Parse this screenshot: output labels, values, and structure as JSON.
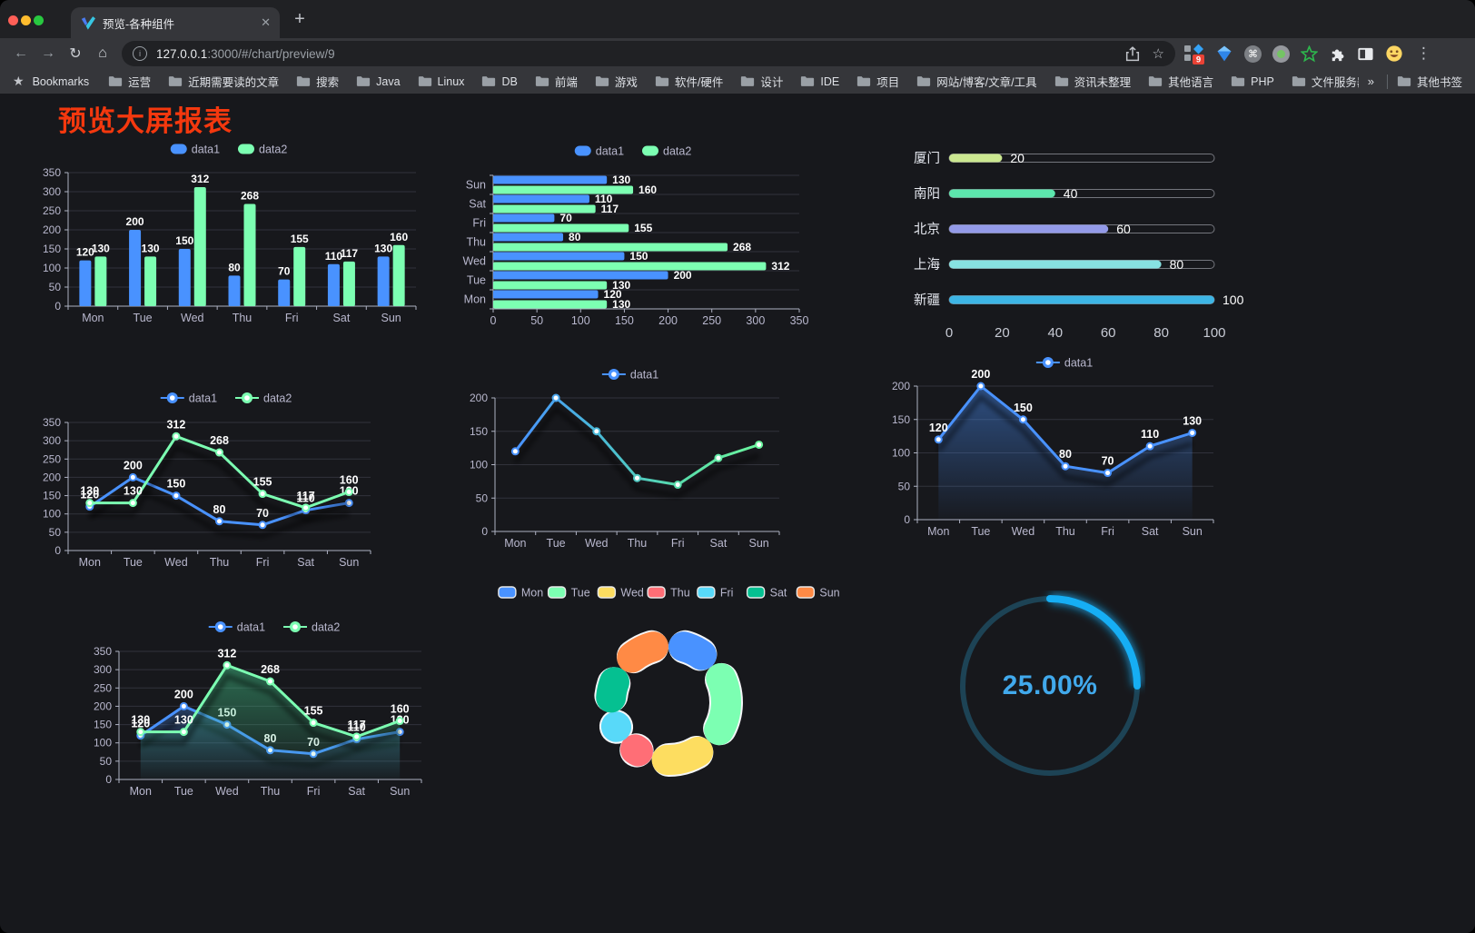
{
  "browser": {
    "tab_title": "预览-各种组件",
    "new_tab_glyph": "+",
    "close_glyph": "✕",
    "url_host": "127.0.0.1",
    "url_rest": ":3000/#/chart/preview/9",
    "extension_badge": "9",
    "icons": {
      "back": "←",
      "forward": "→",
      "reload": "↻",
      "home": "⌂",
      "bookmark_star": "☆",
      "bookmarks_bar_star": "★",
      "menu": "⋮",
      "command": "⌘"
    },
    "bookmarks_bar": {
      "label": "Bookmarks",
      "folders": [
        "运营",
        "近期需要读的文章",
        "搜索",
        "Java",
        "Linux",
        "DB",
        "前端",
        "游戏",
        "软件/硬件",
        "设计",
        "IDE",
        "项目",
        "网站/博客/文章/工具",
        "资讯未整理",
        "其他语言",
        "PHP",
        "文件服务器"
      ],
      "overflow": "»",
      "other_bookmarks": "其他书签"
    }
  },
  "page": {
    "title": "预览大屏报表",
    "title_color": "#f4380e",
    "background": "#17181c"
  },
  "colors": {
    "axis_text": "#b9b8ce",
    "axis_line": "#aeb2c2",
    "grid_line": "#31323b",
    "value_label": "#ffffff",
    "series_blue": "#4992ff",
    "series_green": "#7cffb2"
  },
  "chart_data": [
    {
      "id": "bar-vertical",
      "type": "bar",
      "categories": [
        "Mon",
        "Tue",
        "Wed",
        "Thu",
        "Fri",
        "Sat",
        "Sun"
      ],
      "series": [
        {
          "name": "data1",
          "color": "#4992ff",
          "values": [
            120,
            200,
            150,
            80,
            70,
            110,
            130
          ]
        },
        {
          "name": "data2",
          "color": "#7cffb2",
          "values": [
            130,
            130,
            312,
            268,
            155,
            117,
            160
          ]
        }
      ],
      "ylim": [
        0,
        350
      ],
      "ytick_step": 50,
      "value_labels": true,
      "legend": [
        "data1",
        "data2"
      ]
    },
    {
      "id": "bar-horizontal",
      "type": "bar",
      "orientation": "horizontal",
      "categories": [
        "Mon",
        "Tue",
        "Wed",
        "Thu",
        "Fri",
        "Sat",
        "Sun"
      ],
      "series": [
        {
          "name": "data1",
          "color": "#4992ff",
          "values": [
            120,
            200,
            150,
            80,
            70,
            110,
            130
          ]
        },
        {
          "name": "data2",
          "color": "#7cffb2",
          "values": [
            130,
            130,
            312,
            268,
            155,
            117,
            160
          ]
        }
      ],
      "xlim": [
        0,
        350
      ],
      "xtick_step": 50,
      "value_labels": true,
      "legend": [
        "data1",
        "data2"
      ]
    },
    {
      "id": "progress-bars",
      "type": "bar",
      "orientation": "progress",
      "max": 100,
      "xticks": [
        0,
        20,
        40,
        60,
        80,
        100
      ],
      "items": [
        {
          "label": "厦门",
          "value": 20,
          "color": "#cbe790"
        },
        {
          "label": "南阳",
          "value": 40,
          "color": "#5ce6ad"
        },
        {
          "label": "北京",
          "value": 60,
          "color": "#939ae8"
        },
        {
          "label": "上海",
          "value": 80,
          "color": "#87e2e2"
        },
        {
          "label": "新疆",
          "value": 100,
          "color": "#3db5e5"
        }
      ]
    },
    {
      "id": "line-dual",
      "type": "line",
      "categories": [
        "Mon",
        "Tue",
        "Wed",
        "Thu",
        "Fri",
        "Sat",
        "Sun"
      ],
      "series": [
        {
          "name": "data1",
          "color": "#4992ff",
          "values": [
            120,
            200,
            150,
            80,
            70,
            110,
            130
          ]
        },
        {
          "name": "data2",
          "color": "#7cffb2",
          "values": [
            130,
            130,
            312,
            268,
            155,
            117,
            160
          ]
        }
      ],
      "ylim": [
        0,
        350
      ],
      "ytick_step": 50,
      "value_labels": true,
      "shadow": true,
      "legend": [
        "data1",
        "data2"
      ]
    },
    {
      "id": "line-gradient",
      "type": "line",
      "categories": [
        "Mon",
        "Tue",
        "Wed",
        "Thu",
        "Fri",
        "Sat",
        "Sun"
      ],
      "series": [
        {
          "name": "data1",
          "color": "#4992ff",
          "gradient": [
            "#4992ff",
            "#49b8d8",
            "#58dcab",
            "#6bf59e"
          ],
          "values": [
            120,
            200,
            150,
            80,
            70,
            110,
            130
          ]
        }
      ],
      "ylim": [
        0,
        200
      ],
      "ytick_step": 50,
      "value_labels": false,
      "shadow": true,
      "legend": [
        "data1"
      ]
    },
    {
      "id": "line-area",
      "type": "line",
      "categories": [
        "Mon",
        "Tue",
        "Wed",
        "Thu",
        "Fri",
        "Sat",
        "Sun"
      ],
      "series": [
        {
          "name": "data1",
          "color": "#4992ff",
          "area": "#4992ff",
          "area_opacity": 0.45,
          "values": [
            120,
            200,
            150,
            80,
            70,
            110,
            130
          ]
        }
      ],
      "ylim": [
        0,
        200
      ],
      "ytick_step": 50,
      "value_labels": true,
      "shadow": true,
      "legend": [
        "data1"
      ]
    },
    {
      "id": "line-dual-area",
      "type": "line",
      "categories": [
        "Mon",
        "Tue",
        "Wed",
        "Thu",
        "Fri",
        "Sat",
        "Sun"
      ],
      "series": [
        {
          "name": "data1",
          "color": "#4992ff",
          "area": "#4992ff",
          "area_opacity": 0.32,
          "values": [
            120,
            200,
            150,
            80,
            70,
            110,
            130
          ]
        },
        {
          "name": "data2",
          "color": "#7cffb2",
          "area": "#41c287",
          "area_opacity": 0.5,
          "values": [
            130,
            130,
            312,
            268,
            155,
            117,
            160
          ]
        }
      ],
      "ylim": [
        0,
        350
      ],
      "ytick_step": 50,
      "value_labels": true,
      "shadow": true,
      "legend": [
        "data1",
        "data2"
      ]
    },
    {
      "id": "donut",
      "type": "pie",
      "labels": [
        "Mon",
        "Tue",
        "Wed",
        "Thu",
        "Fri",
        "Sat",
        "Sun"
      ],
      "values": [
        120,
        200,
        150,
        80,
        70,
        110,
        130
      ],
      "colors": [
        "#4992ff",
        "#7cffb2",
        "#fddd60",
        "#ff6e76",
        "#58d9f9",
        "#05c091",
        "#ff8a45"
      ],
      "border_color": "#f4f6f8",
      "inner_radius": 47,
      "outer_radius": 80
    },
    {
      "id": "gauge",
      "type": "gauge",
      "value": 25,
      "display": "25.00%",
      "track_color": "#1d4355",
      "progress_color": "#16aef4",
      "text_color": "#41a9ec"
    }
  ]
}
